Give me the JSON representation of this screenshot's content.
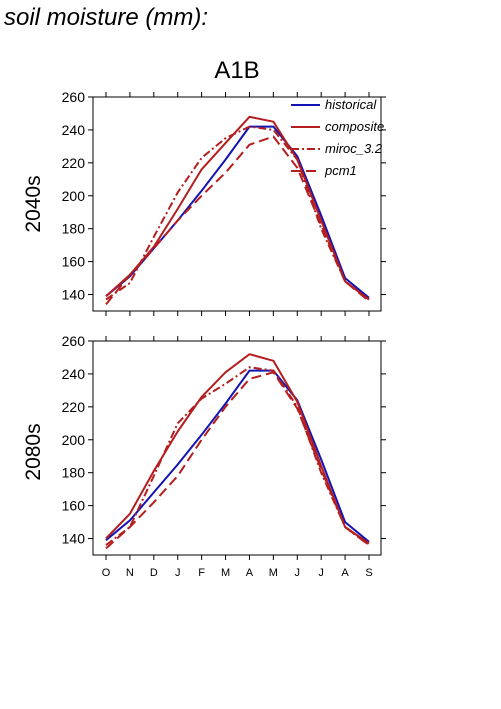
{
  "page_title": "soil moisture (mm):",
  "chart_data": {
    "type": "line",
    "title": "A1B",
    "categories": [
      "O",
      "N",
      "D",
      "J",
      "F",
      "M",
      "A",
      "M",
      "J",
      "J",
      "A",
      "S"
    ],
    "ylim": [
      130,
      260
    ],
    "yticks": [
      140,
      160,
      180,
      200,
      220,
      240,
      260
    ],
    "legend_position": "top-right",
    "series_styles": [
      {
        "name": "historical",
        "color": "#1414b4",
        "dash": ""
      },
      {
        "name": "composite",
        "color": "#b41e1e",
        "dash": ""
      },
      {
        "name": "miroc_3.2",
        "color": "#b41e1e",
        "dash": "8 3 2 3"
      },
      {
        "name": "pcm1",
        "color": "#b41e1e",
        "dash": "10 5"
      }
    ],
    "panels": [
      {
        "label": "2040s",
        "series": [
          {
            "name": "historical",
            "values": [
              139,
              151,
              168,
              185,
              203,
              222,
              242,
              242,
              224,
              188,
              150,
              138
            ]
          },
          {
            "name": "composite",
            "values": [
              139,
              152,
              169,
              192,
              216,
              232,
              248,
              245,
              222,
              185,
              148,
              137
            ]
          },
          {
            "name": "miroc_3.2",
            "values": [
              137,
              147,
              175,
              202,
              223,
              235,
              242,
              240,
              222,
              180,
              148,
              137
            ]
          },
          {
            "name": "pcm1",
            "values": [
              134,
              152,
              168,
              185,
              200,
              214,
              231,
              236,
              217,
              182,
              148,
              136
            ]
          }
        ]
      },
      {
        "label": "2080s",
        "series": [
          {
            "name": "historical",
            "values": [
              139,
              151,
              168,
              185,
              203,
              222,
              242,
              242,
              224,
              188,
              150,
              138
            ]
          },
          {
            "name": "composite",
            "values": [
              140,
              155,
              181,
              205,
              226,
              241,
              252,
              248,
              223,
              184,
              147,
              137
            ]
          },
          {
            "name": "miroc_3.2",
            "values": [
              136,
              147,
              178,
              210,
              225,
              234,
              244,
              242,
              220,
              180,
              147,
              136
            ]
          },
          {
            "name": "pcm1",
            "values": [
              134,
              147,
              162,
              178,
              200,
              220,
              237,
              241,
              219,
              182,
              147,
              136
            ]
          }
        ]
      }
    ]
  }
}
